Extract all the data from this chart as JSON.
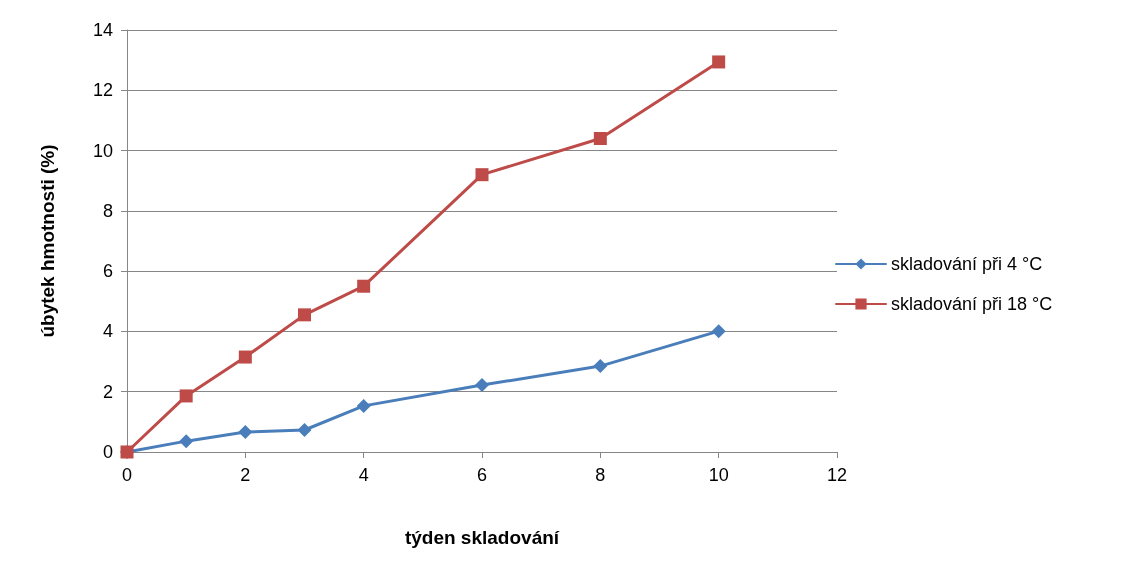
{
  "chart_data": {
    "type": "line",
    "xlabel": "týden skladování",
    "ylabel": "úbytek hmotnosti (%)",
    "x": [
      0,
      1,
      2,
      3,
      4,
      6,
      8,
      10
    ],
    "series": [
      {
        "name": "skladování při 4 °C",
        "color": "#4a7ebb",
        "marker": "diamond",
        "values": [
          0,
          0.36,
          0.66,
          0.73,
          1.53,
          2.22,
          2.85,
          4.01
        ]
      },
      {
        "name": "skladování při 18 °C",
        "color": "#be4b48",
        "marker": "square",
        "values": [
          0,
          1.86,
          3.15,
          4.55,
          5.5,
          9.2,
          10.4,
          12.94
        ]
      }
    ],
    "xlim": [
      0,
      12
    ],
    "xticks": [
      0,
      2,
      4,
      6,
      8,
      10,
      12
    ],
    "ylim": [
      0,
      14
    ],
    "yticks": [
      0,
      2,
      4,
      6,
      8,
      10,
      12,
      14
    ],
    "grid": "y",
    "legend": "right",
    "line_style": "solid"
  }
}
